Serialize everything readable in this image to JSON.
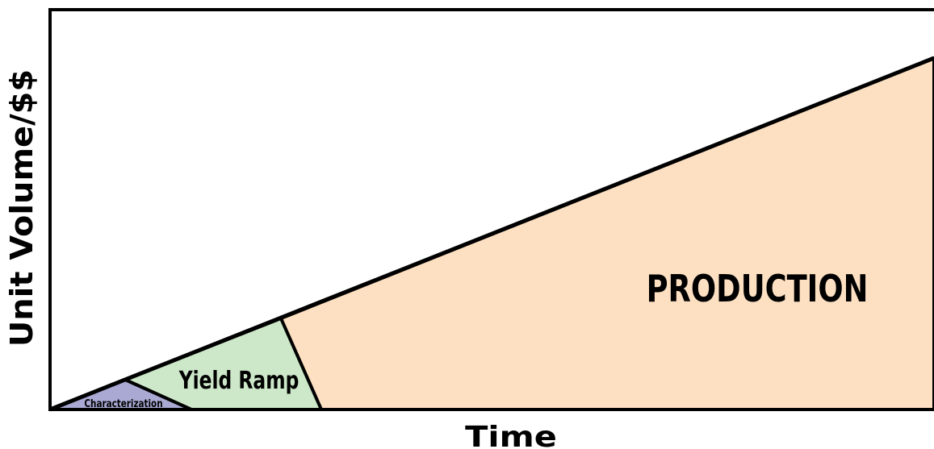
{
  "axes": {
    "y_label": "Unit Volume/$$",
    "x_label": "Time"
  },
  "regions": [
    {
      "label": "Characterization"
    },
    {
      "label": "Yield Ramp"
    },
    {
      "label": "PRODUCTION"
    }
  ]
}
